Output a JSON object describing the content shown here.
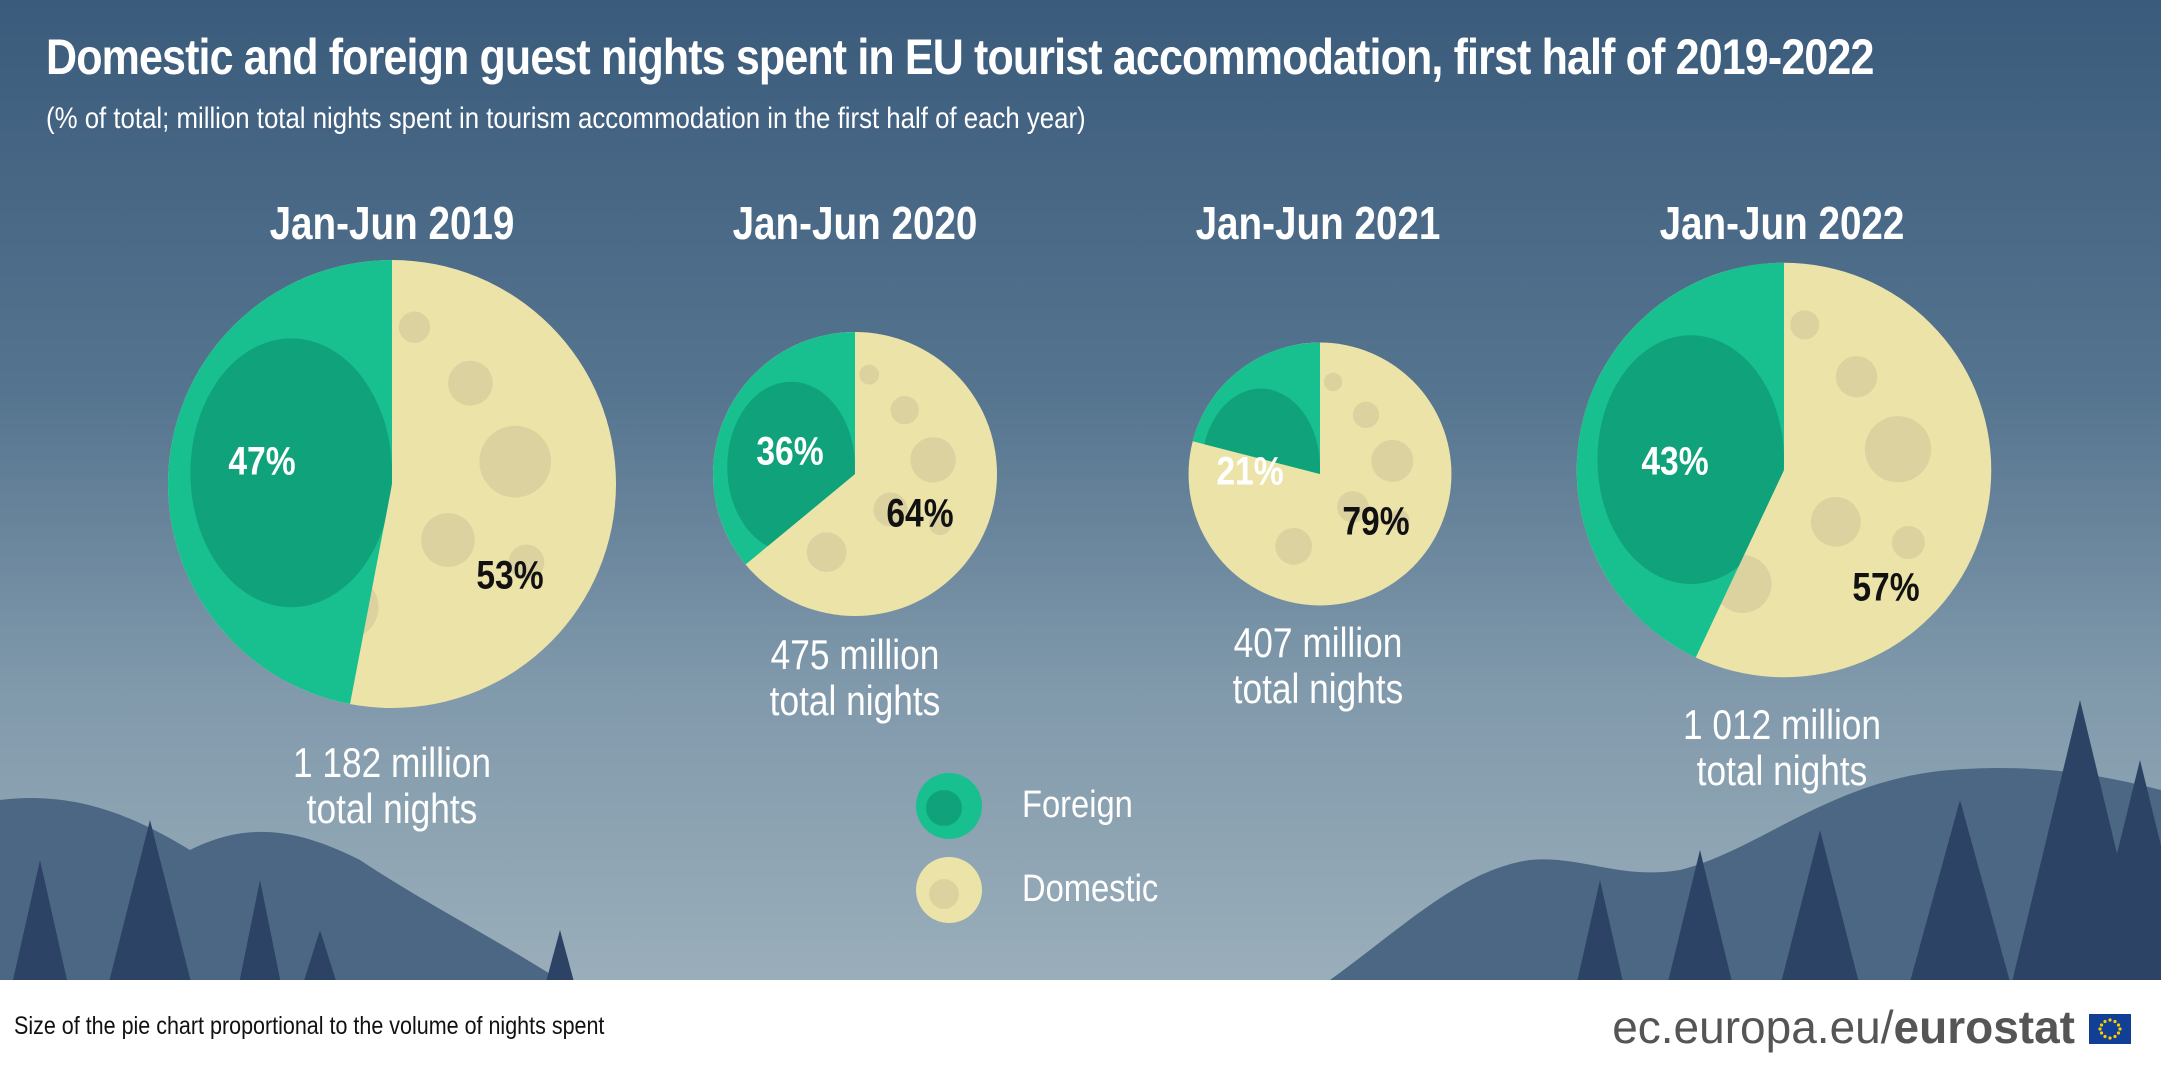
{
  "header": {
    "title": "Domestic and foreign guest nights spent in EU tourist accommodation, first half of 2019-2022",
    "subtitle": "(% of total; million total nights spent in tourism accommodation in the first half of each year)"
  },
  "chart_data": {
    "type": "pie",
    "charts": [
      {
        "period": "Jan-Jun 2019",
        "total_label_line1": "1 182 million",
        "total_label_line2": "total nights",
        "total_million": 1182,
        "foreign_pct": 47,
        "domestic_pct": 53,
        "foreign_label": "47%",
        "domestic_label": "53%"
      },
      {
        "period": "Jan-Jun 2020",
        "total_label_line1": "475 million",
        "total_label_line2": "total nights",
        "total_million": 475,
        "foreign_pct": 36,
        "domestic_pct": 64,
        "foreign_label": "36%",
        "domestic_label": "64%"
      },
      {
        "period": "Jan-Jun 2021",
        "total_label_line1": "407 million",
        "total_label_line2": "total nights",
        "total_million": 407,
        "foreign_pct": 21,
        "domestic_pct": 79,
        "foreign_label": "21%",
        "domestic_label": "79%"
      },
      {
        "period": "Jan-Jun 2022",
        "total_label_line1": "1 012 million",
        "total_label_line2": "total nights",
        "total_million": 1012,
        "foreign_pct": 43,
        "domestic_pct": 57,
        "foreign_label": "43%",
        "domestic_label": "57%"
      }
    ],
    "legend": [
      {
        "label": "Foreign",
        "color": "#17c08e"
      },
      {
        "label": "Domestic",
        "color": "#ece3a8"
      }
    ],
    "legend_position": "bottom-center"
  },
  "footer": {
    "note": "Size of the pie chart proportional to the volume of nights spent",
    "brand_prefix": "ec.europa.eu/",
    "brand_name": "eurostat"
  },
  "colors": {
    "foreign": "#17c08e",
    "foreign_shade": "#10a27a",
    "domestic": "#ece3a8",
    "domestic_shade": "#dcd2a0",
    "sky_top": "#3b5b7c",
    "sky_bottom": "#9aaeba",
    "mountain": "#4c6783",
    "tree": "#2d4365"
  }
}
